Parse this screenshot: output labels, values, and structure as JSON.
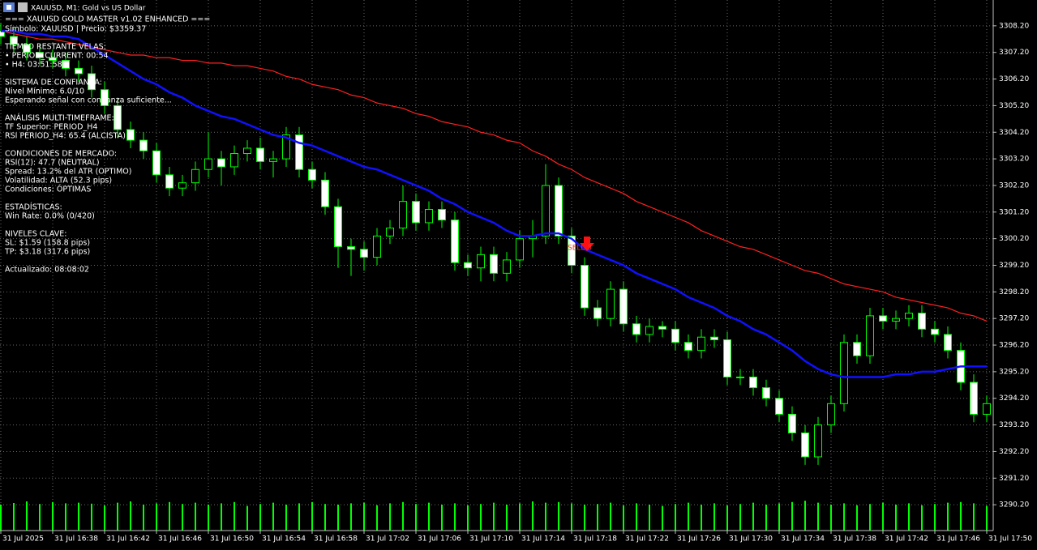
{
  "window_title": "XAUUSD, M1:  Gold vs US Dollar",
  "info": {
    "header": [
      "=== XAUUSD GOLD MASTER v1.02 ENHANCED ===",
      "Símbolo: XAUUSD | Precio: $3359.37"
    ],
    "sections": [
      [
        "TIEMPO RESTANTE VELAS:",
        "• PERIOD_CURRENT: 00:54",
        "• H4: 03:51:58"
      ],
      [
        "SISTEMA DE CONFIANZA:",
        "Nivel Mínimo: 6.0/10",
        "Esperando señal con confianza suficiente..."
      ],
      [
        "ANÁLISIS MULTI-TIMEFRAME:",
        "TF Superior: PERIOD_H4",
        "RSI PERIOD_H4: 65.4 (ALCISTA)"
      ],
      [
        "CONDICIONES DE MERCADO:",
        "RSI(12): 47.7 (NEUTRAL)",
        "Spread: 13.2% del ATR (OPTIMO)",
        "Volatilidad: ALTA (52.3 pips)",
        "Condiciones: ÓPTIMAS"
      ],
      [
        "ESTADÍSTICAS:",
        "Win Rate: 0.0% (0/420)"
      ],
      [
        "NIVELES CLAVE:",
        "SL: $1.59 (158.8 pips)",
        "TP: $3.18 (317.6 pips)"
      ],
      [
        "Actualizado: 08:08:02"
      ]
    ]
  },
  "chart_data": {
    "type": "candlestick",
    "annotation": "SELL 3",
    "categories": [
      "31 Jul 2025",
      null,
      null,
      null,
      "31 Jul 16:38",
      null,
      null,
      null,
      "31 Jul 16:42",
      null,
      null,
      null,
      "31 Jul 16:46",
      null,
      null,
      null,
      "31 Jul 16:50",
      null,
      null,
      null,
      "31 Jul 16:54",
      null,
      null,
      null,
      "31 Jul 16:58",
      null,
      null,
      null,
      "31 Jul 17:02",
      null,
      null,
      null,
      "31 Jul 17:06",
      null,
      null,
      null,
      "31 Jul 17:10",
      null,
      null,
      null,
      "31 Jul 17:14",
      null,
      null,
      null,
      "31 Jul 17:18",
      null,
      null,
      null,
      "31 Jul 17:22",
      null,
      null,
      null,
      "31 Jul 17:26",
      null,
      null,
      null,
      "31 Jul 17:30",
      null,
      null,
      null,
      "31 Jul 17:34",
      null,
      null,
      null,
      "31 Jul 17:38",
      null,
      null,
      null,
      "31 Jul 17:42",
      null,
      null,
      null,
      "31 Jul 17:46",
      null,
      null,
      null,
      "31 Jul 17:50"
    ],
    "open": [
      3308.0,
      3307.8,
      3307.5,
      3307.2,
      3307.0,
      3306.9,
      3306.6,
      3306.4,
      3305.8,
      3305.2,
      3304.3,
      3303.9,
      3303.5,
      3302.6,
      3302.1,
      3302.3,
      3302.8,
      3303.2,
      3302.9,
      3303.4,
      3303.6,
      3303.1,
      3303.2,
      3304.1,
      3302.8,
      3302.4,
      3301.4,
      3299.9,
      3299.8,
      3299.5,
      3300.3,
      3300.6,
      3301.6,
      3300.8,
      3301.3,
      3300.9,
      3299.3,
      3299.1,
      3299.6,
      3298.9,
      3299.4,
      3300.2,
      3300.3,
      3302.2,
      3300.3,
      3299.2,
      3297.6,
      3297.2,
      3298.3,
      3297.0,
      3296.6,
      3296.9,
      3296.8,
      3296.3,
      3296.0,
      3296.5,
      3296.4,
      3295.0,
      3295.0,
      3294.6,
      3294.2,
      3293.6,
      3292.9,
      3292.0,
      3293.2,
      3294.0,
      3296.3,
      3295.8,
      3297.3,
      3297.1,
      3297.2,
      3297.4,
      3296.8,
      3296.6,
      3296.0,
      3294.8,
      3293.6
    ],
    "high": [
      3308.3,
      3308.1,
      3307.8,
      3307.5,
      3307.3,
      3307.2,
      3306.9,
      3306.7,
      3306.1,
      3305.5,
      3304.6,
      3304.2,
      3303.8,
      3302.9,
      3302.6,
      3303.1,
      3304.2,
      3303.5,
      3303.7,
      3303.9,
      3304.0,
      3303.5,
      3304.4,
      3304.4,
      3303.1,
      3302.7,
      3301.7,
      3300.2,
      3300.1,
      3300.6,
      3300.9,
      3302.2,
      3301.9,
      3301.6,
      3301.6,
      3301.2,
      3299.6,
      3299.9,
      3299.9,
      3299.7,
      3300.5,
      3300.9,
      3303.0,
      3302.5,
      3300.6,
      3299.5,
      3297.9,
      3298.6,
      3298.6,
      3297.3,
      3297.2,
      3297.1,
      3297.1,
      3296.6,
      3296.8,
      3296.8,
      3296.7,
      3295.3,
      3295.3,
      3294.9,
      3294.5,
      3293.9,
      3293.2,
      3293.5,
      3294.3,
      3296.6,
      3296.6,
      3297.6,
      3297.6,
      3297.5,
      3297.7,
      3297.7,
      3297.1,
      3296.9,
      3296.3,
      3295.1,
      3294.3
    ],
    "low": [
      3307.5,
      3307.2,
      3306.9,
      3306.7,
      3306.6,
      3306.3,
      3306.1,
      3305.5,
      3304.9,
      3304.0,
      3303.6,
      3303.2,
      3302.3,
      3301.8,
      3301.8,
      3302.0,
      3302.5,
      3302.2,
      3302.6,
      3303.1,
      3302.8,
      3302.5,
      3302.9,
      3302.5,
      3302.1,
      3301.1,
      3299.1,
      3298.8,
      3299.0,
      3299.2,
      3300.0,
      3300.3,
      3300.5,
      3300.5,
      3300.6,
      3299.0,
      3298.8,
      3298.6,
      3298.6,
      3298.6,
      3299.1,
      3299.5,
      3300.0,
      3300.0,
      3298.9,
      3297.3,
      3296.9,
      3296.9,
      3296.7,
      3296.3,
      3296.3,
      3296.5,
      3296.0,
      3295.7,
      3295.7,
      3296.1,
      3294.7,
      3294.7,
      3294.3,
      3293.9,
      3293.3,
      3292.6,
      3291.7,
      3291.7,
      3292.9,
      3293.7,
      3295.5,
      3295.5,
      3296.8,
      3296.8,
      3296.9,
      3296.5,
      3296.3,
      3295.7,
      3294.5,
      3293.3,
      3293.3
    ],
    "close": [
      3307.8,
      3307.5,
      3307.2,
      3307.0,
      3306.9,
      3306.6,
      3306.4,
      3305.8,
      3305.2,
      3304.3,
      3303.9,
      3303.5,
      3302.6,
      3302.1,
      3302.3,
      3302.8,
      3303.2,
      3302.9,
      3303.4,
      3303.6,
      3303.1,
      3303.2,
      3304.1,
      3302.8,
      3302.4,
      3301.4,
      3299.9,
      3299.8,
      3299.5,
      3300.3,
      3300.6,
      3301.6,
      3300.8,
      3301.3,
      3300.9,
      3299.3,
      3299.1,
      3299.6,
      3298.9,
      3299.4,
      3300.2,
      3300.3,
      3302.2,
      3300.3,
      3299.2,
      3297.6,
      3297.2,
      3298.3,
      3297.0,
      3296.6,
      3296.9,
      3296.8,
      3296.3,
      3296.0,
      3296.5,
      3296.4,
      3295.0,
      3295.0,
      3294.6,
      3294.2,
      3293.6,
      3292.9,
      3292.0,
      3293.2,
      3294.0,
      3296.3,
      3295.8,
      3297.3,
      3297.1,
      3297.2,
      3297.4,
      3296.8,
      3296.6,
      3296.0,
      3294.8,
      3293.6,
      3294.0
    ],
    "volume": [
      80,
      85,
      90,
      82,
      88,
      84,
      86,
      83,
      78,
      86,
      90,
      80,
      84,
      88,
      82,
      86,
      80,
      84,
      88,
      76,
      82,
      86,
      80,
      84,
      88,
      82,
      80,
      84,
      86,
      78,
      84,
      88,
      82,
      86,
      80,
      84,
      78,
      82,
      86,
      80,
      84,
      90,
      86,
      88,
      84,
      80,
      82,
      86,
      78,
      84,
      80,
      76,
      82,
      86,
      80,
      84,
      78,
      82,
      86,
      80,
      84,
      88,
      92,
      86,
      80,
      84,
      78,
      82,
      86,
      80,
      84,
      78,
      82,
      86,
      88,
      84,
      76
    ],
    "overlays": [
      {
        "color": "#ff2020",
        "values": [
          3308.0,
          3307.9,
          3307.8,
          3307.7,
          3307.7,
          3307.6,
          3307.5,
          3307.4,
          3307.3,
          3307.2,
          3307.1,
          3307.1,
          3307.0,
          3307.0,
          3306.9,
          3306.9,
          3306.8,
          3306.8,
          3306.7,
          3306.7,
          3306.6,
          3306.5,
          3306.3,
          3306.2,
          3306.0,
          3305.9,
          3305.8,
          3305.6,
          3305.5,
          3305.3,
          3305.2,
          3305.1,
          3304.9,
          3304.8,
          3304.6,
          3304.5,
          3304.4,
          3304.2,
          3304.1,
          3303.9,
          3303.8,
          3303.5,
          3303.3,
          3303.0,
          3302.8,
          3302.5,
          3302.3,
          3302.1,
          3301.9,
          3301.6,
          3301.4,
          3301.2,
          3301.0,
          3300.8,
          3300.5,
          3300.3,
          3300.1,
          3299.9,
          3299.8,
          3299.6,
          3299.4,
          3299.2,
          3299.0,
          3298.9,
          3298.7,
          3298.5,
          3298.4,
          3298.3,
          3298.2,
          3298.0,
          3297.9,
          3297.8,
          3297.7,
          3297.6,
          3297.4,
          3297.3,
          3297.1
        ]
      },
      {
        "color": "#1010ff",
        "values": [
          3308.0,
          3308.0,
          3307.9,
          3307.9,
          3307.8,
          3307.8,
          3307.7,
          3307.4,
          3307.1,
          3306.8,
          3306.5,
          3306.2,
          3306.0,
          3305.7,
          3305.5,
          3305.2,
          3305.0,
          3304.8,
          3304.7,
          3304.5,
          3304.3,
          3304.1,
          3304.0,
          3303.8,
          3303.7,
          3303.5,
          3303.3,
          3303.1,
          3302.9,
          3302.8,
          3302.6,
          3302.4,
          3302.2,
          3302.0,
          3301.7,
          3301.5,
          3301.2,
          3301.0,
          3300.8,
          3300.5,
          3300.3,
          3300.3,
          3300.4,
          3300.4,
          3300.2,
          3299.8,
          3299.6,
          3299.4,
          3299.2,
          3298.9,
          3298.7,
          3298.5,
          3298.3,
          3298.0,
          3297.8,
          3297.6,
          3297.3,
          3297.1,
          3296.8,
          3296.6,
          3296.3,
          3296.0,
          3295.6,
          3295.3,
          3295.1,
          3295.0,
          3295.0,
          3295.0,
          3295.0,
          3295.1,
          3295.1,
          3295.2,
          3295.2,
          3295.3,
          3295.4,
          3295.4,
          3295.4
        ]
      }
    ],
    "up_color": "#000000",
    "down_color": "#ffffff",
    "wick_color": "#00ff00",
    "volume_color": "#00ff00",
    "ylim": [
      3289.23,
      3309.17
    ],
    "yticks": [
      {
        "value": 3290.2,
        "label": "3290.20"
      },
      {
        "value": 3291.2,
        "label": "3291.20"
      },
      {
        "value": 3292.2,
        "label": "3292.20"
      },
      {
        "value": 3293.2,
        "label": "3293.20"
      },
      {
        "value": 3294.2,
        "label": "3294.20"
      },
      {
        "value": 3295.2,
        "label": "3295.20"
      },
      {
        "value": 3296.2,
        "label": "3296.20"
      },
      {
        "value": 3297.2,
        "label": "3297.20"
      },
      {
        "value": 3298.2,
        "label": "3298.20"
      },
      {
        "value": 3299.2,
        "label": "3299.20"
      },
      {
        "value": 3300.2,
        "label": "3300.20"
      },
      {
        "value": 3301.2,
        "label": "3301.20"
      },
      {
        "value": 3302.2,
        "label": "3302.20"
      },
      {
        "value": 3303.2,
        "label": "3303.20"
      },
      {
        "value": 3304.2,
        "label": "3304.20"
      },
      {
        "value": 3305.2,
        "label": "3305.20"
      },
      {
        "value": 3306.2,
        "label": "3306.20"
      },
      {
        "value": 3307.2,
        "label": "3307.20"
      },
      {
        "value": 3308.2,
        "label": "3308.20"
      }
    ],
    "grid": true
  }
}
